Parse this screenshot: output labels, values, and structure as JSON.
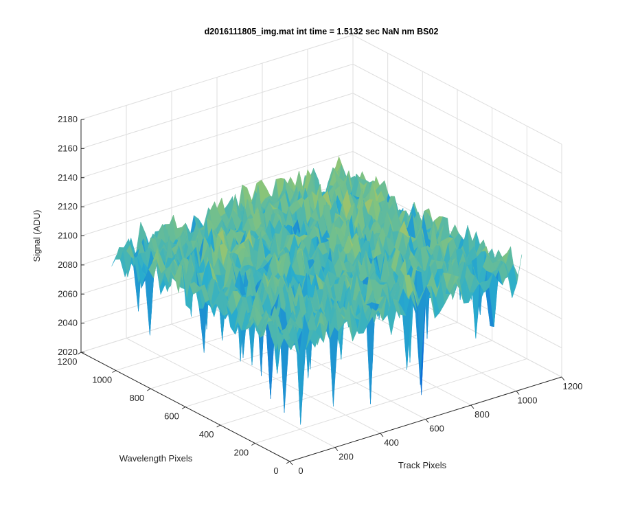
{
  "chart_data": {
    "type": "surface",
    "title": "d2016111805_img.mat int time = 1.5132 sec  NaN nm BS02",
    "xlabel": "Track Pixels",
    "ylabel": "Wavelength Pixels",
    "zlabel": "Signal (ADU)",
    "xlim": [
      0,
      1200
    ],
    "ylim": [
      0,
      1200
    ],
    "zlim": [
      2020,
      2180
    ],
    "xticks": [
      "0",
      "200",
      "400",
      "600",
      "800",
      "1000",
      "1200"
    ],
    "yticks": [
      "0",
      "200",
      "400",
      "600",
      "800",
      "1000",
      "1200"
    ],
    "zticks": [
      "2020",
      "2040",
      "2060",
      "2080",
      "2100",
      "2120",
      "2140",
      "2160",
      "2180"
    ],
    "grid": true,
    "colormap": "parula",
    "surface": {
      "x_extent": [
        0,
        1024
      ],
      "y_extent": [
        0,
        1024
      ],
      "approx_mean": 2098,
      "approx_min": 2030,
      "approx_max": 2170,
      "mean_gradient": "slightly higher toward high Track Pixels and high Wavelength Pixels"
    }
  }
}
